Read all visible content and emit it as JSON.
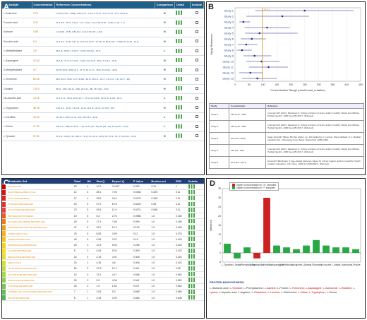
{
  "panel_a": {
    "label": "A",
    "headers": [
      "Analyte",
      "Concentration",
      "Reference Concentrations",
      "Comparison",
      "Detail",
      "Include"
    ],
    "rows": [
      {
        "metabolite": "L-Isoleucine",
        "concentration": "0.24",
        "reference": "1.079 (0.769 - 2.889); 0.84 (0.27 - 1.61); 0.76 (0 - 4.0); 2.4 (0 - 6.0); 1.8 (0.8)",
        "comparison": "N"
      },
      {
        "metabolite": "Fumaric acid",
        "concentration": "0.47",
        "reference": "16.4 (2.8 - 30.7); 0 (0.0 - 1.7); 1.0 (0 - 2.4); 0.66 (0.32 - 1.00); 0.7 (0 - 1.7)",
        "comparison": "N"
      },
      {
        "metabolite": "Acetone",
        "concentration": "0.58",
        "reference": "4.2 (0.96 - 15.5); 0.82 (0.2 - 2.0); 0.63 (0.5 - 1.62)",
        "comparison": "N"
      },
      {
        "metabolite": "Succinic acid",
        "concentration": "9.4",
        "reference": "14.4 (4.0 - 34.6); 3.21 (0 - 8.7); 6.0 (0.47 - 24.73); 14.86 (11.26 - 77.86); 8.4 (4.46 - 14.3)",
        "comparison": "N"
      },
      {
        "metabolite": "1-Methylhistidine",
        "concentration": "2.6",
        "reference": "18.2 (0 - 60.5); 1.0 (0.17 - 2.02); 8.6 (2.9 - 10.7)",
        "comparison": "L"
      },
      {
        "metabolite": "L-Asparagine",
        "concentration": "10.62",
        "reference": "16.3 (8 - 37.1); 8.1 (3.11 - 18.6); 14.3 (3.8 - 26.0); 7.4 (3.9 - 16.2)",
        "comparison": "N"
      },
      {
        "metabolite": "3-Methylhistidine",
        "concentration": "9.7",
        "reference": "40.76 (10.5); 26.81 (9.1 - 47.7); 32.1 (1.7 - 78.4); 19.3 (6.1 - 49.9)",
        "comparison": "N"
      },
      {
        "metabolite": "L-Threonine",
        "concentration": "60.16",
        "reference": "26.2 (12.4 - 55.6); 14.7 (4.634 - 35.1); 11.9 (4 - 24.7); 4.0 (2.4 - 7.4); 16 (7 - 29)",
        "comparison": "H"
      },
      {
        "metabolite": "Creatine",
        "concentration": "720.0",
        "reference": "46 (0 - 135); 112 (9 - 404); 20.0 (0 - 48); 167 (124 - 210)",
        "comparison": "H"
      },
      {
        "metabolite": "cis-Aconitic acid",
        "concentration": "14.15",
        "reference": "27.8 (17.1 - 50.5); 26.0 (14.7 - 37.3); 21.6 (8.2 - 40.2); 37.1 (8.6 - 65.7)",
        "comparison": "L"
      },
      {
        "metabolite": "L-Tryptophan",
        "concentration": "36.78",
        "reference": "6.20 (1.6 - 12.1); 7.3 (2.8 - 16.4); 11.0 (5 - 21.0); 6.0 (3.5 - 9.6)",
        "comparison": "H"
      },
      {
        "metabolite": "L-Carnitine",
        "concentration": "16.20",
        "reference": "16 (18.4 - 56.2); 27 (8 - 62); 23.5 (9.3 - 46.5)",
        "comparison": "L"
      },
      {
        "metabolite": "L-Serine",
        "concentration": "17.32",
        "reference": "104.1 (0 - 208); 51.8 (27 - 76); 22.64 (15 - 44); 60 (34 - 92); 42.9 (24.3 - 61.5)",
        "comparison": "L"
      },
      {
        "metabolite": "L-Tyrosine",
        "concentration": "97.51",
        "reference": "57.3 (0 - 116.4); 34.1 (16.9 - 71.3); 11.3 (5.2 - 20.9); 15.7 (6.9 - 31.7); 16.4 (9.4 - 23.2)",
        "comparison": "H"
      }
    ]
  },
  "panel_b": {
    "label": "B",
    "ylabel": "Study Reference",
    "xlabel": "Concentration Range (umol/mmol_creatine)",
    "highlight_value": "97.51",
    "table_headers": [
      "Study",
      "Concentration",
      "Reference"
    ],
    "table_rows": [
      {
        "study": "Study 1",
        "concentration": "249.5 (72 - 425)",
        "reference": "Lissmann EP, Ziefl A, Metasovic A: Urinary excretion of amino acids in healthy infants and children. Pediatr Nephrol. 1990 Sep;4(5):463-7. (Pubmed)"
      },
      {
        "study": "Study 2",
        "concentration": "169.5 (40 - 265)",
        "reference": "Lissmann EP, Ziefl A, Metasovic A: Urinary excretion of amino acids in healthy infants and children. Pediatr Nephrol. 1990 Sep;4(5):463-7. (Pubmed)"
      },
      {
        "study": "Study 3",
        "concentration": "30 (15.8 - 53.8)",
        "reference": "Geigy Scientific Tables, 8th Rev edition, pp. 130. Edited by C. Lentner, West Caldwell, N.J.: Medical education Div., Ciba-Geigy Corp. Basel, Switzerland c1981-1992."
      },
      {
        "study": "Study 4",
        "concentration": "115 (34 - 196)",
        "reference": "Lissmann EP, Ziefl A, Metasovic A: Urinary excretion of amino acids in healthy infants and children. Pediatr Nephrol. 1990 Sep;4(5):463-7. (Pubmed)"
      },
      {
        "study": "Study 5",
        "concentration": "87.8 (36 - 224.4)",
        "reference": "Guneral F, Bachmann C: Age-related reference values for urinary organic acids in a healthy Turkish pediatric population. Clin Chem. 1994 Jun;40(6):862-6. (Pubmed)"
      }
    ]
  },
  "panel_c": {
    "label": "C",
    "headers": [
      "Metabolite Set",
      "Total",
      "Hit",
      "Stat Q",
      "Expect Q",
      "P Value",
      "Bonferroni",
      "FDR",
      "Details"
    ],
    "rows": [
      {
        "name": "GLYCOLYSIS",
        "total": "25",
        "hit": "4",
        "statq": "10.2",
        "expect": "0.0127",
        "p": "0.253",
        "bonf": "0.31",
        "fdr": "1",
        "color": "#cc0000"
      },
      {
        "name": "GLUCOSE-ALANINE CYCLE",
        "total": "12",
        "hit": "4",
        "statq": "28.1",
        "expect": "7.94",
        "p": "0.0183",
        "bonf": "0.325",
        "fdr": "0.11",
        "color": "#dd1111"
      },
      {
        "name": "GLUCONEOGENESIS",
        "total": "27",
        "hit": "4",
        "statq": "33.6",
        "p": "0.0175",
        "expect": "9.14",
        "bonf": "0.348",
        "fdr": "0.11",
        "color": "#e02222"
      },
      {
        "name": "PYRUVATE METABOLISM",
        "total": "20",
        "hit": "5",
        "statq": "27.9",
        "expect": "8.76",
        "p": "0.0225",
        "bonf": "0.45",
        "fdr": "0.11",
        "color": "#e43030"
      },
      {
        "name": "GALACTOSE METABOLISM",
        "total": "23",
        "hit": "5",
        "statq": "39.4",
        "expect": "11.9",
        "p": "0.0274",
        "bonf": "0.548",
        "fdr": "0.11",
        "color": "#e84040"
      },
      {
        "name": "PROTEIN BIOSYNTHESIS",
        "total": "19",
        "hit": "5",
        "statq": "6.4",
        "expect": "2.76",
        "p": "0.0986",
        "bonf": "1.0",
        "fdr": "0.169",
        "color": "#ec5a1a"
      },
      {
        "name": "GLYCINE AND SERINE METABOLISM",
        "total": "26",
        "hit": "5",
        "statq": "17.3",
        "expect": "7.66",
        "p": "0.099",
        "bonf": "1.0",
        "fdr": "0.169",
        "color": "#ef7a1a"
      },
      {
        "name": "ARGININE AND PROLINE METABOLISM",
        "total": "47",
        "hit": "6",
        "statq": "22.0",
        "expect": "10.2",
        "p": "0.102",
        "bonf": "1.0",
        "fdr": "0.169",
        "color": "#f29a1a"
      },
      {
        "name": "CITRIC ACID CYCLE",
        "total": "23",
        "hit": "6",
        "statq": "8.83",
        "expect": "3.95",
        "p": "0.11",
        "bonf": "1.0",
        "fdr": "0.376",
        "color": "#f5b01a"
      },
      {
        "name": "PURINE METABOLISM",
        "total": "45",
        "hit": "5",
        "statq": "0.59",
        "expect": "0.37",
        "p": "0.19",
        "bonf": "1.0",
        "fdr": "0.423",
        "color": "#f7c01a"
      },
      {
        "name": "PROPANOATE METABOLISM",
        "total": "26",
        "hit": "3",
        "statq": "10.3",
        "expect": "5.39",
        "p": "0.236",
        "bonf": "1.0",
        "fdr": "0.423",
        "color": "#f9d01a"
      },
      {
        "name": "ALANINE METABOLISM",
        "total": "8",
        "hit": "3",
        "statq": "4.94",
        "expect": "5.34",
        "p": "0.309",
        "bonf": "1.0",
        "fdr": "0.423",
        "color": "#fadc1a"
      },
      {
        "name": "METHIONINE METABOLISM",
        "total": "24",
        "hit": "4",
        "statq": "4.19",
        "expect": "4.91",
        "p": "0.308",
        "bonf": "1.0",
        "fdr": "0.423",
        "color": "#e8e020"
      },
      {
        "name": "UREA CYCLE",
        "total": "20",
        "hit": "2",
        "statq": "4.25",
        "expect": "4.6",
        "p": "0.308",
        "bonf": "1.0",
        "fdr": "0.423",
        "color": "#d4e030"
      },
      {
        "name": "TRYPTOPHAN METABOLISM",
        "total": "54",
        "hit": "5",
        "statq": "10.3",
        "expect": "10.7",
        "p": "0.441",
        "bonf": "1.0",
        "fdr": "0.65",
        "color": "#c0dc40"
      },
      {
        "name": "GLUTATHIONE METABOLISM",
        "total": "13",
        "hit": "3",
        "statq": "13.1",
        "expect": "4.17",
        "p": "0.548",
        "bonf": "1.0",
        "fdr": "0.652",
        "color": "#a8d448"
      },
      {
        "name": "ASPARTATE METABOLISM",
        "total": "35",
        "hit": "3",
        "statq": "5.5",
        "expect": "4.06",
        "p": "0.541",
        "bonf": "1.0",
        "fdr": "0.652",
        "color": "#90cc50"
      },
      {
        "name": "CYSTEINE METABOLISM",
        "total": "26",
        "hit": "3",
        "statq": "1.9",
        "expect": "1.84",
        "p": "0.571",
        "bonf": "1.0",
        "fdr": "0.652",
        "color": "#78c458"
      },
      {
        "name": "TAURINE AND HYPOTAURINE METABOLISM",
        "total": "7",
        "hit": "1",
        "statq": "2.04",
        "expect": "9.3",
        "p": "0.668",
        "bonf": "1.0",
        "fdr": "0.666",
        "color": "#62bc5a"
      },
      {
        "name": "BIOTIN METABOLISM",
        "total": "8",
        "hit": "1",
        "statq": "2.34",
        "expect": "3.99",
        "p": "0.848",
        "bonf": "1.0",
        "fdr": "0.848",
        "color": "#4cb45c"
      }
    ]
  },
  "panel_d": {
    "label": "D",
    "legend_high": "higher concentration in \"h\" samples",
    "legend_low": "higher concentration in \"l\" samples",
    "ylabel": "influence",
    "set_title": "PROTEIN BIOSYNTHESIS",
    "members_prefix": "L-Glutamic acid; ",
    "members": [
      {
        "text": "L-Tyrosine",
        "hl": true
      },
      {
        "text": "L-Phenylalanine",
        "hl": false
      },
      {
        "text": "L-Alanine",
        "hl": true
      },
      {
        "text": "L-Proline",
        "hl": false
      },
      {
        "text": "L-Threonine",
        "hl": true
      },
      {
        "text": "L-Asparagine",
        "hl": true
      },
      {
        "text": "L-Isoleucine",
        "hl": true
      },
      {
        "text": "L-Histidine",
        "hl": true
      },
      {
        "text": "L-Lysine",
        "hl": true
      },
      {
        "text": "L-Aspartic acid",
        "hl": false
      },
      {
        "text": "L-Arginine",
        "hl": false
      },
      {
        "text": "L-Glutamine",
        "hl": true
      },
      {
        "text": "L-Leucine",
        "hl": true
      },
      {
        "text": "L-Methionine",
        "hl": false
      },
      {
        "text": "L-Valine",
        "hl": true
      },
      {
        "text": "L-Tryptophan",
        "hl": true
      },
      {
        "text": "L-Serine",
        "hl": false
      }
    ]
  },
  "chart_data": [
    {
      "type": "scatter",
      "xlabel": "Concentration Range (umol/mmol_creatine)",
      "ylabel": "Study Reference",
      "categories": [
        "Study 1",
        "Study 2",
        "Study 3",
        "Study 4",
        "Study 5",
        "Study 6",
        "Study 7",
        "Study 8",
        "Study 9",
        "Study 10",
        "Study 11",
        "Study 12",
        "Study 13"
      ],
      "series": [
        {
          "values": [
            249.5,
            169.5,
            30,
            115,
            87.8,
            60,
            40,
            25,
            70,
            95,
            120,
            55,
            80
          ]
        }
      ],
      "ranges": [
        [
          72,
          425
        ],
        [
          40,
          265
        ],
        [
          15.8,
          53.8
        ],
        [
          34,
          196
        ],
        [
          36,
          224.4
        ],
        [
          20,
          110
        ],
        [
          10,
          80
        ],
        [
          5,
          60
        ],
        [
          30,
          130
        ],
        [
          40,
          160
        ],
        [
          50,
          190
        ],
        [
          15,
          100
        ],
        [
          25,
          150
        ]
      ],
      "xlim": [
        0,
        450
      ],
      "reference_line": 97.51
    },
    {
      "type": "bar",
      "ylabel": "influence",
      "categories": [
        "L-Tyrosine",
        "L-Serine",
        "L-Phenylalanine",
        "L-Tryptophan",
        "L-Histidine",
        "L-Asparagine",
        "L-Methionine",
        "L-Arginine",
        "L-Alanine",
        "L-Glutamine",
        "L-Leucine",
        "L-Valine",
        "L-Isoleucine",
        "L-Proline"
      ],
      "series": [
        {
          "values": [
            5,
            -3,
            3,
            -3,
            30,
            4,
            3,
            2,
            4,
            7,
            4,
            3,
            3,
            2
          ]
        }
      ],
      "colors": [
        "#2aa845",
        "#2aa845",
        "#2aa845",
        "#cc2222",
        "#cc2222",
        "#2aa845",
        "#2aa845",
        "#2aa845",
        "#2aa845",
        "#2aa845",
        "#2aa845",
        "#2aa845",
        "#2aa845",
        "#2aa845"
      ],
      "ylim": [
        -5,
        35
      ]
    }
  ]
}
